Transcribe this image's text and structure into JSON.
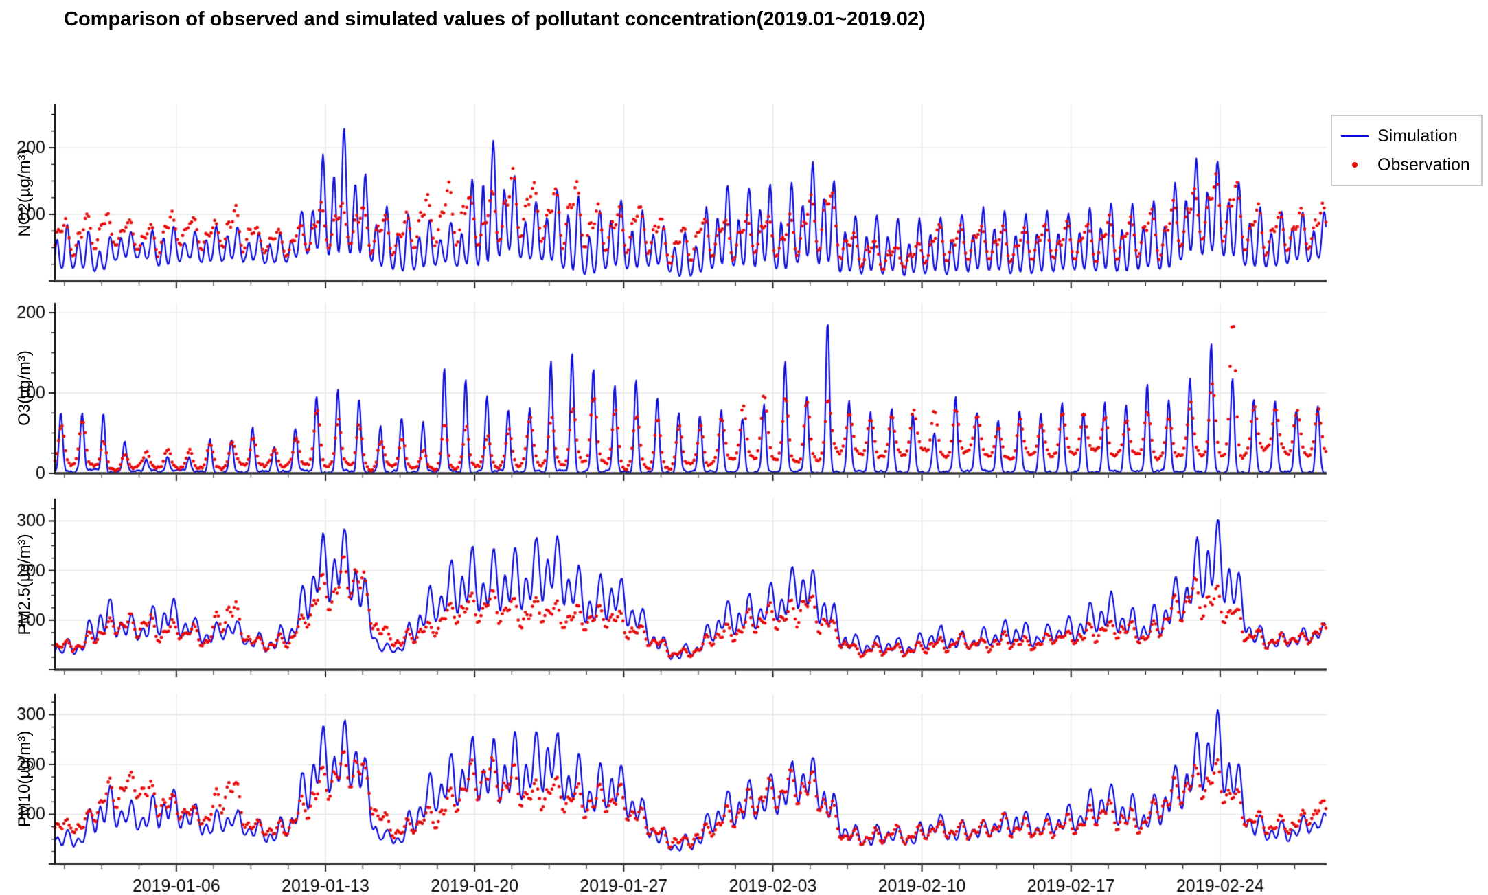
{
  "title": "Comparison of observed and simulated values of pollutant concentration(2019.01~2019.02)",
  "legend": {
    "items": [
      {
        "label": "Simulation",
        "color": "#0b0bdd",
        "marker": "line"
      },
      {
        "label": "Observation",
        "color": "#e80b0b",
        "marker": "dot"
      }
    ]
  },
  "x_axis": {
    "start_date": "2019-01-01",
    "end_date": "2019-02-28",
    "days": 59,
    "tick_days": [
      5,
      12,
      19,
      26,
      33,
      40,
      47,
      54
    ],
    "tick_labels": [
      "2019-01-06",
      "2019-01-13",
      "2019-01-20",
      "2019-01-27",
      "2019-02-03",
      "2019-02-10",
      "2019-02-17",
      "2019-02-24"
    ]
  },
  "chart_data": [
    {
      "type": "line",
      "pollutant": "NO2",
      "ylabel": "NO2(µg/m³)",
      "yticks": [
        100,
        200
      ],
      "ylim": [
        0,
        265
      ],
      "grid": true,
      "sampling": "hourly; values below are estimated per-day min/max envelopes read from the figure",
      "series": [
        {
          "name": "Simulation",
          "style": "line",
          "color": "#0b0bdd",
          "daily_min": [
            15,
            12,
            35,
            30,
            18,
            35,
            25,
            30,
            28,
            22,
            30,
            40,
            30,
            35,
            20,
            10,
            15,
            25,
            20,
            15,
            40,
            25,
            30,
            10,
            5,
            20,
            15,
            20,
            5,
            10,
            20,
            15,
            20,
            10,
            25,
            20,
            5,
            8,
            10,
            5,
            10,
            8,
            12,
            10,
            8,
            12,
            10,
            15,
            10,
            8,
            15,
            10,
            30,
            35,
            30,
            15,
            20,
            25,
            30
          ],
          "daily_max": [
            85,
            62,
            78,
            68,
            92,
            70,
            82,
            88,
            76,
            66,
            80,
            150,
            245,
            200,
            115,
            100,
            95,
            80,
            108,
            225,
            190,
            110,
            140,
            150,
            95,
            135,
            110,
            95,
            75,
            80,
            150,
            135,
            160,
            125,
            165,
            190,
            95,
            100,
            95,
            88,
            100,
            95,
            105,
            115,
            100,
            108,
            100,
            105,
            118,
            112,
            120,
            125,
            175,
            185,
            170,
            120,
            95,
            110,
            105
          ]
        },
        {
          "name": "Observation",
          "style": "scatter",
          "color": "#e80b0b",
          "daily_min": [
            30,
            40,
            45,
            40,
            35,
            45,
            40,
            35,
            40,
            30,
            35,
            30,
            35,
            40,
            30,
            25,
            35,
            45,
            40,
            35,
            45,
            50,
            40,
            30,
            25,
            30,
            30,
            25,
            20,
            25,
            30,
            25,
            30,
            20,
            30,
            35,
            15,
            12,
            15,
            12,
            20,
            20,
            25,
            20,
            20,
            25,
            20,
            25,
            20,
            25,
            30,
            25,
            40,
            50,
            45,
            30,
            25,
            30,
            40
          ],
          "daily_max": [
            95,
            110,
            90,
            85,
            105,
            95,
            85,
            110,
            90,
            75,
            80,
            105,
            115,
            120,
            100,
            95,
            130,
            140,
            130,
            120,
            160,
            155,
            135,
            160,
            115,
            105,
            110,
            95,
            80,
            90,
            100,
            95,
            100,
            85,
            125,
            150,
            70,
            60,
            55,
            50,
            75,
            80,
            85,
            80,
            75,
            85,
            80,
            90,
            85,
            95,
            110,
            105,
            140,
            160,
            155,
            110,
            95,
            105,
            115
          ]
        }
      ]
    },
    {
      "type": "line",
      "pollutant": "O3",
      "ylabel": "O3(µg/m³)",
      "yticks": [
        0,
        100,
        200
      ],
      "ylim": [
        0,
        212
      ],
      "grid": true,
      "sampling": "hourly; values below are estimated per-day min/max envelopes read from the figure",
      "series": [
        {
          "name": "Simulation",
          "style": "line",
          "color": "#0b0bdd",
          "daily_min": [
            2,
            2,
            2,
            2,
            2,
            2,
            2,
            2,
            2,
            2,
            2,
            2,
            2,
            2,
            2,
            2,
            2,
            2,
            2,
            2,
            2,
            2,
            2,
            2,
            2,
            2,
            2,
            2,
            2,
            2,
            2,
            2,
            2,
            2,
            2,
            2,
            2,
            2,
            2,
            2,
            2,
            2,
            2,
            2,
            2,
            2,
            2,
            2,
            2,
            2,
            2,
            2,
            2,
            2,
            2,
            2,
            2,
            2,
            2
          ],
          "daily_max": [
            75,
            78,
            40,
            18,
            22,
            18,
            42,
            40,
            58,
            32,
            50,
            100,
            110,
            97,
            55,
            72,
            58,
            130,
            118,
            97,
            83,
            75,
            140,
            148,
            135,
            108,
            120,
            95,
            75,
            70,
            78,
            70,
            78,
            145,
            88,
            200,
            90,
            76,
            78,
            75,
            45,
            95,
            78,
            65,
            80,
            72,
            88,
            75,
            90,
            85,
            110,
            88,
            115,
            165,
            120,
            95,
            90,
            78,
            85
          ]
        },
        {
          "name": "Observation",
          "style": "scatter",
          "color": "#e80b0b",
          "daily_min": [
            8,
            8,
            6,
            5,
            6,
            5,
            6,
            8,
            8,
            6,
            8,
            8,
            10,
            8,
            6,
            8,
            5,
            8,
            8,
            8,
            10,
            10,
            12,
            12,
            15,
            12,
            12,
            10,
            10,
            10,
            12,
            15,
            20,
            18,
            15,
            20,
            25,
            20,
            22,
            20,
            25,
            20,
            25,
            22,
            20,
            25,
            22,
            28,
            25,
            22,
            25,
            22,
            25,
            25,
            20,
            22,
            25,
            20,
            25
          ],
          "daily_max": [
            62,
            42,
            25,
            25,
            28,
            30,
            35,
            40,
            42,
            30,
            38,
            75,
            72,
            60,
            40,
            45,
            28,
            65,
            55,
            48,
            58,
            62,
            70,
            78,
            95,
            85,
            75,
            70,
            60,
            55,
            65,
            80,
            105,
            100,
            85,
            90,
            75,
            70,
            72,
            68,
            80,
            75,
            72,
            65,
            70,
            68,
            75,
            80,
            72,
            68,
            75,
            70,
            85,
            100,
            195,
            80,
            75,
            72,
            80
          ]
        }
      ]
    },
    {
      "type": "line",
      "pollutant": "PM2.5",
      "ylabel": "PM2.5(µg/m³)",
      "yticks": [
        100,
        200,
        300
      ],
      "ylim": [
        0,
        345
      ],
      "grid": true,
      "sampling": "hourly; values below are estimated per-day min/max envelopes read from the figure",
      "series": [
        {
          "name": "Simulation",
          "style": "line",
          "color": "#0b0bdd",
          "daily_min": [
            15,
            20,
            40,
            30,
            35,
            40,
            30,
            45,
            30,
            15,
            30,
            60,
            80,
            60,
            25,
            20,
            30,
            60,
            50,
            60,
            50,
            60,
            80,
            60,
            40,
            60,
            40,
            15,
            5,
            10,
            40,
            30,
            50,
            60,
            80,
            40,
            20,
            15,
            20,
            15,
            25,
            20,
            25,
            30,
            25,
            30,
            35,
            30,
            40,
            35,
            30,
            35,
            60,
            70,
            60,
            30,
            25,
            30,
            45
          ],
          "daily_max": [
            60,
            160,
            120,
            110,
            160,
            120,
            90,
            110,
            80,
            70,
            110,
            265,
            300,
            260,
            60,
            55,
            150,
            200,
            250,
            235,
            245,
            250,
            290,
            230,
            185,
            215,
            150,
            80,
            45,
            60,
            130,
            155,
            160,
            180,
            230,
            170,
            75,
            65,
            70,
            60,
            95,
            80,
            75,
            90,
            110,
            85,
            100,
            120,
            160,
            140,
            110,
            170,
            215,
            330,
            255,
            95,
            75,
            80,
            90
          ]
        },
        {
          "name": "Observation",
          "style": "scatter",
          "color": "#e80b0b",
          "daily_min": [
            25,
            30,
            50,
            40,
            30,
            35,
            30,
            40,
            30,
            25,
            30,
            50,
            70,
            90,
            40,
            25,
            30,
            45,
            50,
            60,
            60,
            55,
            60,
            50,
            40,
            45,
            35,
            15,
            10,
            15,
            30,
            35,
            45,
            55,
            60,
            35,
            20,
            15,
            18,
            15,
            25,
            20,
            25,
            25,
            20,
            25,
            30,
            25,
            35,
            30,
            25,
            35,
            60,
            70,
            45,
            30,
            25,
            30,
            45
          ],
          "daily_max": [
            60,
            95,
            120,
            110,
            100,
            90,
            80,
            160,
            70,
            60,
            80,
            170,
            200,
            250,
            95,
            60,
            90,
            120,
            150,
            165,
            150,
            140,
            155,
            130,
            120,
            130,
            100,
            60,
            40,
            55,
            90,
            110,
            130,
            145,
            170,
            120,
            60,
            50,
            55,
            50,
            70,
            65,
            60,
            70,
            75,
            65,
            75,
            85,
            110,
            100,
            80,
            130,
            190,
            175,
            150,
            85,
            70,
            75,
            85
          ]
        }
      ]
    },
    {
      "type": "line",
      "pollutant": "PM10",
      "ylabel": "PM10(µg/m³)",
      "yticks": [
        100,
        200,
        300
      ],
      "ylim": [
        0,
        342
      ],
      "grid": true,
      "sampling": "hourly; values below are estimated per-day min/max envelopes read from the figure",
      "series": [
        {
          "name": "Simulation",
          "style": "line",
          "color": "#0b0bdd",
          "daily_min": [
            20,
            25,
            45,
            35,
            40,
            45,
            35,
            50,
            35,
            18,
            35,
            65,
            85,
            65,
            30,
            25,
            35,
            65,
            55,
            65,
            55,
            65,
            85,
            65,
            45,
            65,
            45,
            18,
            8,
            12,
            45,
            35,
            55,
            65,
            85,
            45,
            25,
            18,
            25,
            18,
            30,
            25,
            30,
            35,
            30,
            35,
            40,
            35,
            45,
            40,
            35,
            40,
            65,
            80,
            65,
            35,
            25,
            30,
            50
          ],
          "daily_max": [
            70,
            170,
            130,
            120,
            165,
            130,
            100,
            120,
            90,
            80,
            115,
            275,
            270,
            305,
            70,
            65,
            160,
            210,
            260,
            240,
            270,
            255,
            295,
            235,
            190,
            225,
            160,
            85,
            50,
            70,
            140,
            165,
            175,
            190,
            240,
            180,
            85,
            75,
            80,
            70,
            105,
            90,
            85,
            100,
            120,
            95,
            110,
            130,
            170,
            150,
            120,
            180,
            230,
            330,
            260,
            105,
            85,
            90,
            100
          ]
        },
        {
          "name": "Observation",
          "style": "scatter",
          "color": "#e80b0b",
          "daily_min": [
            50,
            60,
            90,
            80,
            60,
            55,
            50,
            60,
            45,
            35,
            40,
            60,
            90,
            110,
            55,
            35,
            40,
            55,
            65,
            80,
            75,
            70,
            75,
            65,
            55,
            60,
            45,
            20,
            15,
            20,
            40,
            45,
            60,
            70,
            80,
            45,
            25,
            20,
            25,
            20,
            30,
            28,
            30,
            30,
            28,
            30,
            35,
            30,
            45,
            40,
            35,
            45,
            75,
            85,
            60,
            40,
            35,
            40,
            60
          ],
          "daily_max": [
            90,
            150,
            180,
            175,
            150,
            130,
            110,
            200,
            100,
            80,
            105,
            185,
            230,
            250,
            115,
            80,
            110,
            140,
            180,
            235,
            215,
            180,
            190,
            165,
            150,
            165,
            130,
            80,
            55,
            70,
            110,
            140,
            170,
            185,
            200,
            150,
            75,
            65,
            70,
            65,
            90,
            85,
            80,
            90,
            95,
            85,
            95,
            105,
            135,
            125,
            105,
            160,
            200,
            205,
            190,
            110,
            95,
            105,
            130
          ]
        }
      ]
    }
  ]
}
